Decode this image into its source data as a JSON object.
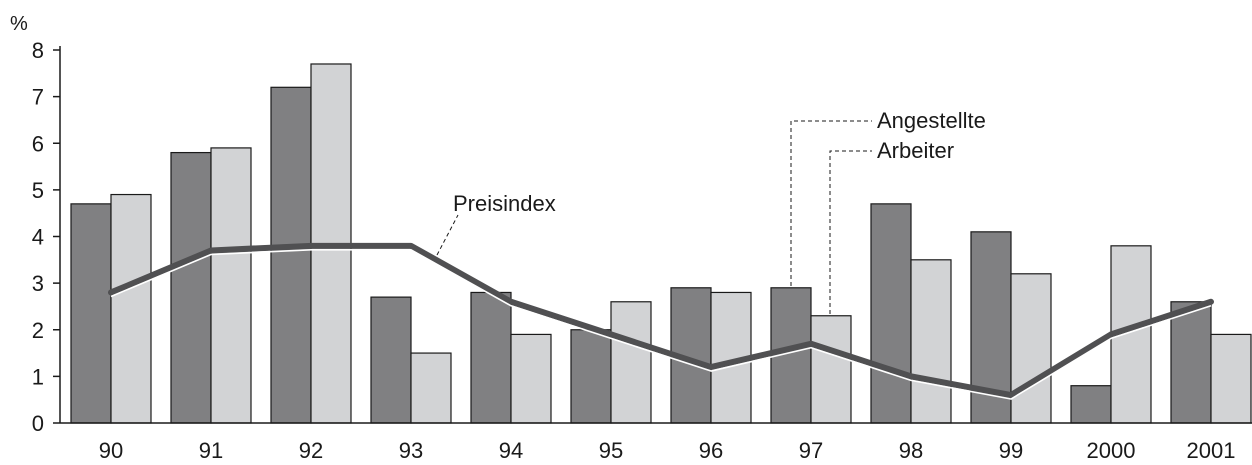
{
  "chart_data": {
    "type": "bar",
    "y_unit": "%",
    "ylim": [
      0,
      8
    ],
    "y_ticks": [
      "0",
      "1",
      "2",
      "3",
      "4",
      "5",
      "6",
      "7",
      "8"
    ],
    "grid": false,
    "categories": [
      "90",
      "91",
      "92",
      "93",
      "94",
      "95",
      "96",
      "97",
      "98",
      "99",
      "2000",
      "2001"
    ],
    "series": [
      {
        "name": "Angestellte",
        "kind": "bar",
        "color": "#808082",
        "values": [
          4.7,
          5.8,
          7.2,
          2.7,
          2.8,
          2.0,
          2.9,
          2.9,
          4.7,
          4.1,
          0.8,
          2.6
        ]
      },
      {
        "name": "Arbeiter",
        "kind": "bar",
        "color": "#d2d3d5",
        "values": [
          4.9,
          5.9,
          7.7,
          1.5,
          1.9,
          2.6,
          2.8,
          2.3,
          3.5,
          3.2,
          3.8,
          1.9
        ]
      },
      {
        "name": "Preisindex",
        "kind": "line",
        "color": "#505052",
        "values": [
          2.8,
          3.7,
          3.8,
          3.8,
          2.6,
          1.9,
          1.2,
          1.7,
          1.0,
          0.6,
          1.9,
          2.6
        ]
      }
    ],
    "annotations": {
      "angestellte": "Angestellte",
      "arbeiter": "Arbeiter",
      "preisindex": "Preisindex"
    }
  }
}
